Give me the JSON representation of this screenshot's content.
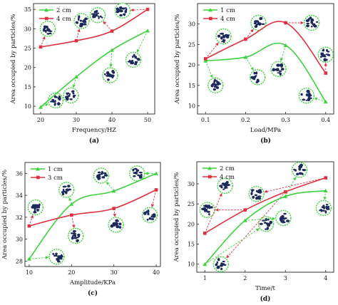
{
  "colors": {
    "green": "#3cd33c",
    "red": "#e03040",
    "axis": "#222222",
    "particle_ring": "#3cd33c",
    "particle_fill": "#1b2a5a"
  },
  "chart_data": [
    {
      "panel_label": "(a)",
      "type": "line",
      "xlabel": "Frequency/HZ",
      "ylabel": "Area occupied by particles/%",
      "xlim": [
        18,
        52
      ],
      "ylim": [
        8,
        36.5
      ],
      "xticks": [
        20,
        30,
        40,
        50
      ],
      "yticks": [
        10,
        15,
        20,
        25,
        30,
        35
      ],
      "legend_position": "top-left",
      "series": [
        {
          "name": "2 cm",
          "color_key": "green",
          "x": [
            20,
            30,
            40,
            50
          ],
          "values": [
            9.8,
            17.6,
            24.5,
            29.5
          ]
        },
        {
          "name": "4 cm",
          "color_key": "red",
          "x": [
            20,
            30,
            40,
            50
          ],
          "values": [
            25.3,
            26.9,
            29.4,
            35.0
          ]
        }
      ]
    },
    {
      "panel_label": "(b)",
      "type": "line",
      "xlabel": "Load/MPa",
      "ylabel": "Area occupied by particles/%",
      "xlim": [
        0.08,
        0.42
      ],
      "ylim": [
        8,
        35
      ],
      "xticks": [
        0.1,
        0.2,
        0.3,
        0.4
      ],
      "yticks": [
        10,
        15,
        20,
        25,
        30
      ],
      "legend_position": "top-left",
      "series": [
        {
          "name": "1 cm",
          "color_key": "green",
          "x": [
            0.1,
            0.2,
            0.3,
            0.4
          ],
          "values": [
            21.0,
            21.9,
            24.8,
            11.0
          ]
        },
        {
          "name": "4 cm",
          "color_key": "red",
          "x": [
            0.1,
            0.2,
            0.3,
            0.4
          ],
          "values": [
            21.5,
            26.3,
            30.3,
            18.0
          ]
        }
      ]
    },
    {
      "panel_label": "(c)",
      "type": "line",
      "xlabel": "Amplitude/KPa",
      "ylabel": "Area occupied by particles/%",
      "xlim": [
        9,
        41
      ],
      "ylim": [
        27.5,
        37
      ],
      "xticks": [
        10,
        20,
        30,
        40
      ],
      "yticks": [
        28,
        30,
        32,
        34,
        36
      ],
      "legend_position": "top-left",
      "series": [
        {
          "name": "1 cm",
          "color_key": "green",
          "x": [
            10,
            20,
            30,
            40
          ],
          "values": [
            28.2,
            33.2,
            34.4,
            36.0
          ]
        },
        {
          "name": "3 cm",
          "color_key": "red",
          "x": [
            10,
            20,
            30,
            40
          ],
          "values": [
            31.2,
            32.2,
            32.8,
            34.5
          ]
        }
      ]
    },
    {
      "panel_label": "(d)",
      "type": "line",
      "xlabel": "Time/t",
      "ylabel": "Area occupied by particles/%",
      "xlim": [
        0.8,
        4.2
      ],
      "ylim": [
        8,
        35.5
      ],
      "xticks": [
        1,
        2,
        3,
        4
      ],
      "yticks": [
        10,
        15,
        20,
        25,
        30
      ],
      "legend_position": "top-left",
      "series": [
        {
          "name": "2 cm",
          "color_key": "green",
          "x": [
            1,
            2,
            3,
            4
          ],
          "values": [
            10.0,
            20.9,
            26.9,
            28.3
          ]
        },
        {
          "name": "4 cm",
          "color_key": "red",
          "x": [
            1,
            2,
            3,
            4
          ],
          "values": [
            17.7,
            23.5,
            28.0,
            31.5
          ]
        }
      ]
    }
  ]
}
